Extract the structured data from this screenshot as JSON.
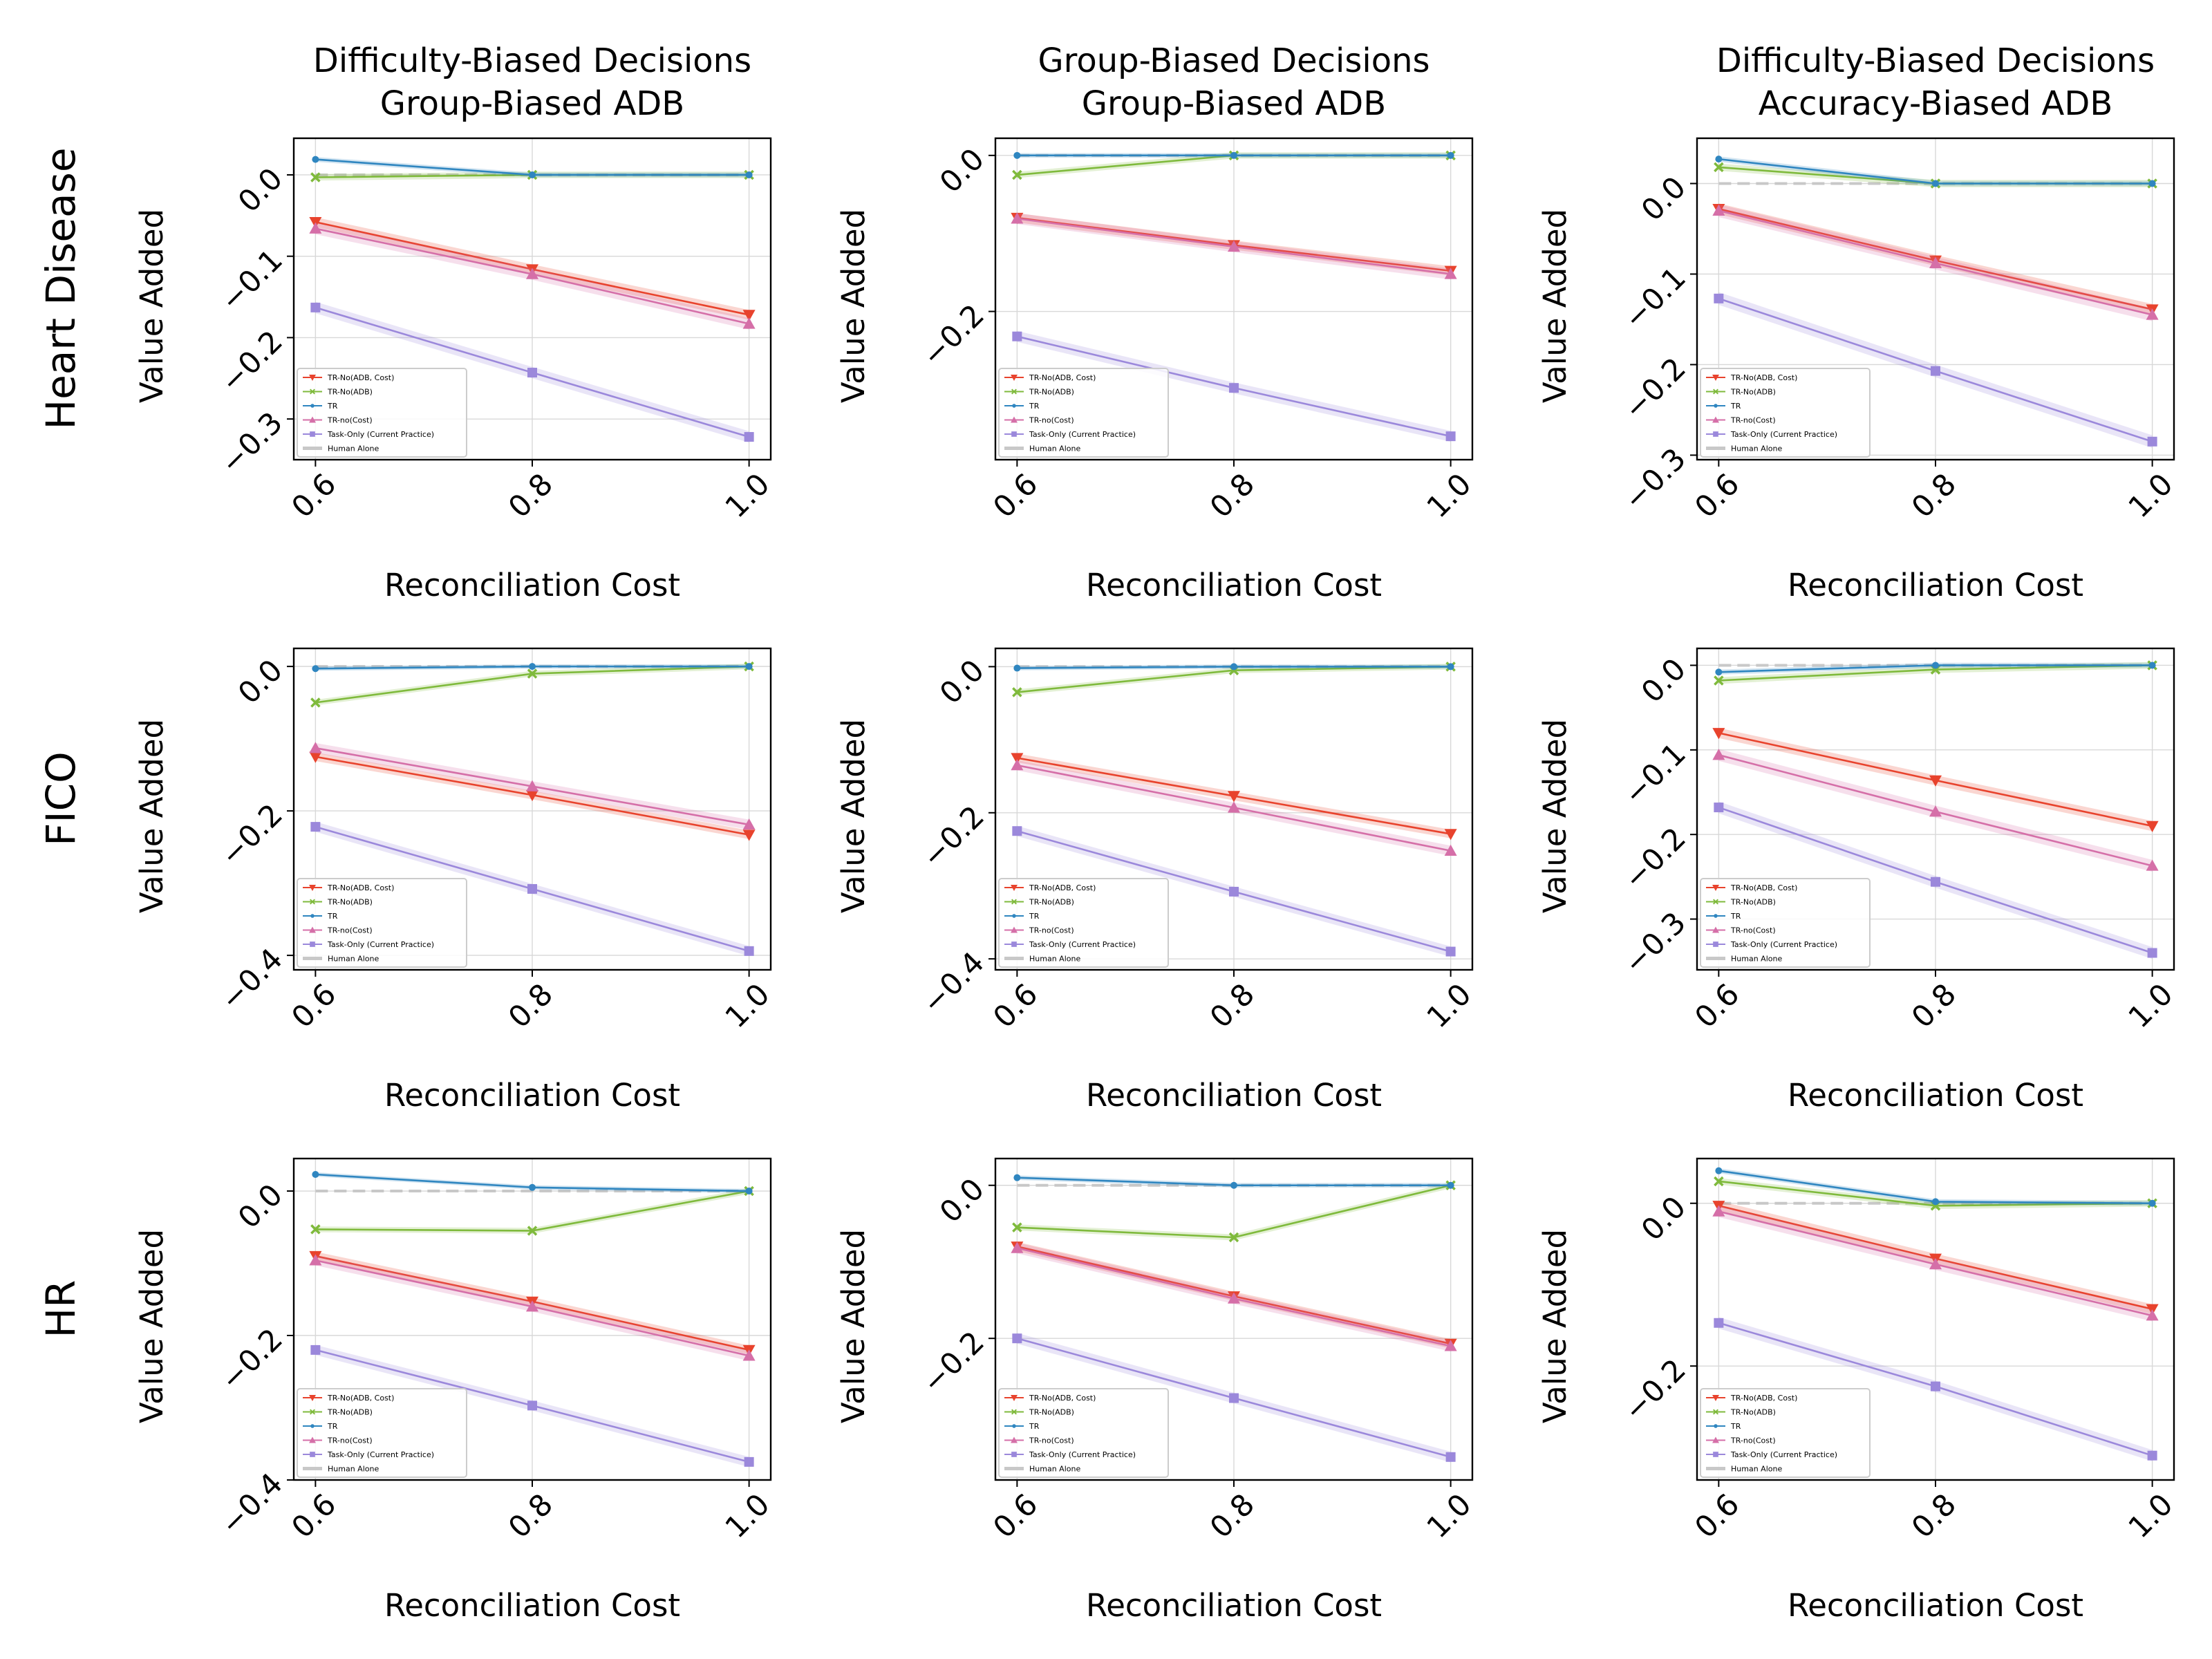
{
  "figure": {
    "row_labels": [
      "Heart Disease",
      "FICO",
      "HR"
    ],
    "col_titles": [
      [
        "Difficulty-Biased Decisions",
        "Group-Biased ADB"
      ],
      [
        "Group-Biased Decisions",
        "Group-Biased ADB"
      ],
      [
        "Difficulty-Biased Decisions",
        "Accuracy-Biased ADB"
      ]
    ],
    "xlabel": "Reconciliation Cost",
    "ylabel": "Value Added",
    "legend": [
      {
        "name": "TR-No(ADB, Cost)",
        "color": "#e8432d",
        "marker": "triangle-down"
      },
      {
        "name": "TR-No(ADB)",
        "color": "#7fba3c",
        "marker": "x"
      },
      {
        "name": "TR",
        "color": "#2f86c0",
        "marker": "dot"
      },
      {
        "name": "TR-no(Cost)",
        "color": "#d56fa8",
        "marker": "triangle-up"
      },
      {
        "name": "Task-Only (Current Practice)",
        "color": "#9b88db",
        "marker": "square"
      },
      {
        "name": "Human Alone",
        "color": "#c8c8c8",
        "marker": "dash"
      }
    ]
  },
  "chart_data": [
    {
      "type": "line",
      "row": "Heart Disease",
      "title": "Difficulty-Biased Decisions Group-Biased ADB",
      "xlabel": "Reconciliation Cost",
      "ylabel": "Value Added",
      "x": [
        0.6,
        0.8,
        1.0
      ],
      "xticks": [
        "0.6",
        "0.8",
        "1.0"
      ],
      "ylim": [
        -0.35,
        0.045
      ],
      "yticks": [
        0.0,
        -0.1,
        -0.2,
        -0.3
      ],
      "yticklabels": [
        "0.0",
        "−0.1",
        "−0.2",
        "−0.3"
      ],
      "grid": true,
      "legend_loc": "lower-left",
      "series": [
        {
          "name": "TR-No(ADB, Cost)",
          "values": [
            -0.058,
            -0.116,
            -0.172
          ]
        },
        {
          "name": "TR-No(ADB)",
          "values": [
            -0.003,
            0.0,
            0.0
          ]
        },
        {
          "name": "TR",
          "values": [
            0.019,
            0.0,
            0.0
          ]
        },
        {
          "name": "TR-no(Cost)",
          "values": [
            -0.066,
            -0.122,
            -0.183
          ]
        },
        {
          "name": "Task-Only (Current Practice)",
          "values": [
            -0.163,
            -0.243,
            -0.322
          ]
        },
        {
          "name": "Human Alone",
          "values": [
            0.0,
            0.0,
            0.0
          ]
        }
      ]
    },
    {
      "type": "line",
      "row": "Heart Disease",
      "title": "Group-Biased Decisions Group-Biased ADB",
      "xlabel": "Reconciliation Cost",
      "ylabel": "Value Added",
      "x": [
        0.6,
        0.8,
        1.0
      ],
      "xticks": [
        "0.6",
        "0.8",
        "1.0"
      ],
      "ylim": [
        -0.39,
        0.022
      ],
      "yticks": [
        0.0,
        -0.2
      ],
      "yticklabels": [
        "0.0",
        "−0.2"
      ],
      "grid": true,
      "legend_loc": "lower-left",
      "series": [
        {
          "name": "TR-No(ADB, Cost)",
          "values": [
            -0.08,
            -0.115,
            -0.148
          ]
        },
        {
          "name": "TR-No(ADB)",
          "values": [
            -0.025,
            0.0,
            0.0
          ]
        },
        {
          "name": "TR",
          "values": [
            0.0,
            0.0,
            0.0
          ]
        },
        {
          "name": "TR-no(Cost)",
          "values": [
            -0.081,
            -0.117,
            -0.152
          ]
        },
        {
          "name": "Task-Only (Current Practice)",
          "values": [
            -0.232,
            -0.298,
            -0.36
          ]
        },
        {
          "name": "Human Alone",
          "values": [
            0.0,
            0.0,
            0.0
          ]
        }
      ]
    },
    {
      "type": "line",
      "row": "Heart Disease",
      "title": "Difficulty-Biased Decisions Accuracy-Biased ADB",
      "xlabel": "Reconciliation Cost",
      "ylabel": "Value Added",
      "x": [
        0.6,
        0.8,
        1.0
      ],
      "xticks": [
        "0.6",
        "0.8",
        "1.0"
      ],
      "ylim": [
        -0.305,
        0.05
      ],
      "yticks": [
        0.0,
        -0.1,
        -0.2,
        -0.3
      ],
      "yticklabels": [
        "0.0",
        "−0.1",
        "−0.2",
        "−0.3"
      ],
      "grid": true,
      "legend_loc": "lower-left",
      "series": [
        {
          "name": "TR-No(ADB, Cost)",
          "values": [
            -0.028,
            -0.085,
            -0.139
          ]
        },
        {
          "name": "TR-No(ADB)",
          "values": [
            0.018,
            0.0,
            0.0
          ]
        },
        {
          "name": "TR",
          "values": [
            0.027,
            0.0,
            0.0
          ]
        },
        {
          "name": "TR-no(Cost)",
          "values": [
            -0.03,
            -0.088,
            -0.145
          ]
        },
        {
          "name": "Task-Only (Current Practice)",
          "values": [
            -0.127,
            -0.207,
            -0.285
          ]
        },
        {
          "name": "Human Alone",
          "values": [
            0.0,
            0.0,
            0.0
          ]
        }
      ]
    },
    {
      "type": "line",
      "row": "FICO",
      "title": "",
      "xlabel": "Reconciliation Cost",
      "ylabel": "Value Added",
      "x": [
        0.6,
        0.8,
        1.0
      ],
      "xticks": [
        "0.6",
        "0.8",
        "1.0"
      ],
      "ylim": [
        -0.42,
        0.025
      ],
      "yticks": [
        0.0,
        -0.2,
        -0.4
      ],
      "yticklabels": [
        "0.0",
        "−0.2",
        "−0.4"
      ],
      "grid": true,
      "legend_loc": "lower-left",
      "series": [
        {
          "name": "TR-No(ADB, Cost)",
          "values": [
            -0.125,
            -0.178,
            -0.233
          ]
        },
        {
          "name": "TR-No(ADB)",
          "values": [
            -0.05,
            -0.01,
            0.0
          ]
        },
        {
          "name": "TR",
          "values": [
            -0.003,
            0.0,
            0.0
          ]
        },
        {
          "name": "TR-no(Cost)",
          "values": [
            -0.113,
            -0.166,
            -0.219
          ]
        },
        {
          "name": "Task-Only (Current Practice)",
          "values": [
            -0.222,
            -0.308,
            -0.394
          ]
        },
        {
          "name": "Human Alone",
          "values": [
            0.0,
            0.0,
            0.0
          ]
        }
      ]
    },
    {
      "type": "line",
      "row": "FICO",
      "title": "",
      "xlabel": "Reconciliation Cost",
      "ylabel": "Value Added",
      "x": [
        0.6,
        0.8,
        1.0
      ],
      "xticks": [
        "0.6",
        "0.8",
        "1.0"
      ],
      "ylim": [
        -0.415,
        0.025
      ],
      "yticks": [
        0.0,
        -0.2,
        -0.4
      ],
      "yticklabels": [
        "0.0",
        "−0.2",
        "−0.4"
      ],
      "grid": true,
      "legend_loc": "lower-left",
      "series": [
        {
          "name": "TR-No(ADB, Cost)",
          "values": [
            -0.125,
            -0.177,
            -0.229
          ]
        },
        {
          "name": "TR-No(ADB)",
          "values": [
            -0.035,
            -0.005,
            0.0
          ]
        },
        {
          "name": "TR",
          "values": [
            -0.002,
            0.0,
            0.0
          ]
        },
        {
          "name": "TR-no(Cost)",
          "values": [
            -0.135,
            -0.193,
            -0.252
          ]
        },
        {
          "name": "Task-Only (Current Practice)",
          "values": [
            -0.225,
            -0.308,
            -0.39
          ]
        },
        {
          "name": "Human Alone",
          "values": [
            0.0,
            0.0,
            0.0
          ]
        }
      ]
    },
    {
      "type": "line",
      "row": "FICO",
      "title": "",
      "xlabel": "Reconciliation Cost",
      "ylabel": "Value Added",
      "x": [
        0.6,
        0.8,
        1.0
      ],
      "xticks": [
        "0.6",
        "0.8",
        "1.0"
      ],
      "ylim": [
        -0.36,
        0.02
      ],
      "yticks": [
        0.0,
        -0.1,
        -0.2,
        -0.3
      ],
      "yticklabels": [
        "0.0",
        "−0.1",
        "−0.2",
        "−0.3"
      ],
      "grid": true,
      "legend_loc": "lower-left",
      "series": [
        {
          "name": "TR-No(ADB, Cost)",
          "values": [
            -0.08,
            -0.136,
            -0.19
          ]
        },
        {
          "name": "TR-No(ADB)",
          "values": [
            -0.018,
            -0.005,
            0.0
          ]
        },
        {
          "name": "TR",
          "values": [
            -0.008,
            0.0,
            0.0
          ]
        },
        {
          "name": "TR-no(Cost)",
          "values": [
            -0.106,
            -0.173,
            -0.237
          ]
        },
        {
          "name": "Task-Only (Current Practice)",
          "values": [
            -0.168,
            -0.256,
            -0.34
          ]
        },
        {
          "name": "Human Alone",
          "values": [
            0.0,
            0.0,
            0.0
          ]
        }
      ]
    },
    {
      "type": "line",
      "row": "HR",
      "title": "",
      "xlabel": "Reconciliation Cost",
      "ylabel": "Value Added",
      "x": [
        0.6,
        0.8,
        1.0
      ],
      "xticks": [
        "0.6",
        "0.8",
        "1.0"
      ],
      "ylim": [
        -0.4,
        0.045
      ],
      "yticks": [
        0.0,
        -0.2,
        -0.4
      ],
      "yticklabels": [
        "0.0",
        "−0.2",
        "−0.4"
      ],
      "grid": true,
      "legend_loc": "lower-left",
      "series": [
        {
          "name": "TR-No(ADB, Cost)",
          "values": [
            -0.09,
            -0.153,
            -0.22
          ]
        },
        {
          "name": "TR-No(ADB)",
          "values": [
            -0.053,
            -0.055,
            0.0
          ]
        },
        {
          "name": "TR",
          "values": [
            0.023,
            0.005,
            0.0
          ]
        },
        {
          "name": "TR-no(Cost)",
          "values": [
            -0.096,
            -0.16,
            -0.228
          ]
        },
        {
          "name": "Task-Only (Current Practice)",
          "values": [
            -0.22,
            -0.297,
            -0.375
          ]
        },
        {
          "name": "Human Alone",
          "values": [
            0.0,
            0.0,
            0.0
          ]
        }
      ]
    },
    {
      "type": "line",
      "row": "HR",
      "title": "",
      "xlabel": "Reconciliation Cost",
      "ylabel": "Value Added",
      "x": [
        0.6,
        0.8,
        1.0
      ],
      "xticks": [
        "0.6",
        "0.8",
        "1.0"
      ],
      "ylim": [
        -0.385,
        0.035
      ],
      "yticks": [
        0.0,
        -0.2
      ],
      "yticklabels": [
        "0.0",
        "−0.2"
      ],
      "grid": true,
      "legend_loc": "lower-left",
      "series": [
        {
          "name": "TR-No(ADB, Cost)",
          "values": [
            -0.08,
            -0.145,
            -0.207
          ]
        },
        {
          "name": "TR-No(ADB)",
          "values": [
            -0.055,
            -0.068,
            0.0
          ]
        },
        {
          "name": "TR",
          "values": [
            0.01,
            0.0,
            0.0
          ]
        },
        {
          "name": "TR-no(Cost)",
          "values": [
            -0.082,
            -0.148,
            -0.21
          ]
        },
        {
          "name": "Task-Only (Current Practice)",
          "values": [
            -0.2,
            -0.278,
            -0.355
          ]
        },
        {
          "name": "Human Alone",
          "values": [
            0.0,
            0.0,
            0.0
          ]
        }
      ]
    },
    {
      "type": "line",
      "row": "HR",
      "title": "",
      "xlabel": "Reconciliation Cost",
      "ylabel": "Value Added",
      "x": [
        0.6,
        0.8,
        1.0
      ],
      "xticks": [
        "0.6",
        "0.8",
        "1.0"
      ],
      "ylim": [
        -0.34,
        0.055
      ],
      "yticks": [
        0.0,
        -0.2
      ],
      "yticklabels": [
        "0.0",
        "−0.2"
      ],
      "grid": true,
      "legend_loc": "lower-left",
      "series": [
        {
          "name": "TR-No(ADB, Cost)",
          "values": [
            -0.003,
            -0.068,
            -0.13
          ]
        },
        {
          "name": "TR-No(ADB)",
          "values": [
            0.027,
            -0.003,
            0.0
          ]
        },
        {
          "name": "TR",
          "values": [
            0.04,
            0.002,
            0.0
          ]
        },
        {
          "name": "TR-no(Cost)",
          "values": [
            -0.01,
            -0.075,
            -0.138
          ]
        },
        {
          "name": "Task-Only (Current Practice)",
          "values": [
            -0.147,
            -0.225,
            -0.31
          ]
        },
        {
          "name": "Human Alone",
          "values": [
            0.0,
            0.0,
            0.0
          ]
        }
      ]
    }
  ]
}
